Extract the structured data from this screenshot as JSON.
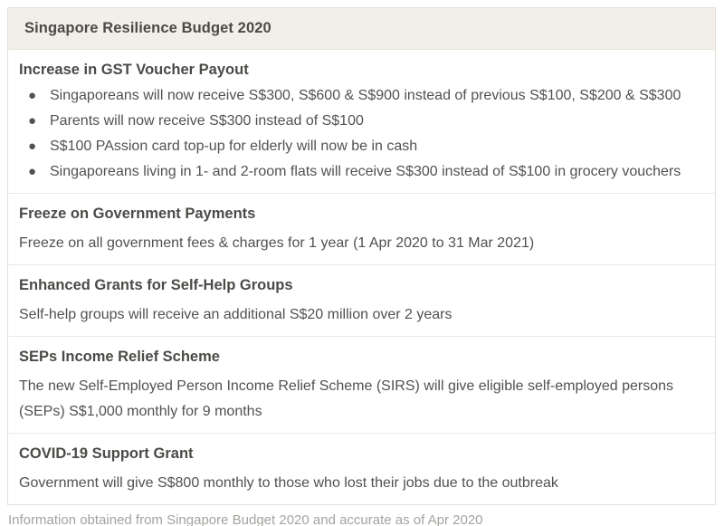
{
  "header": {
    "title": "Singapore Resilience Budget 2020"
  },
  "sections": [
    {
      "heading": "Increase in GST Voucher Payout",
      "bullets": [
        "Singaporeans will now receive S$300, S$600 & S$900 instead of previous S$100, S$200 & S$300",
        "Parents will now receive S$300 instead of S$100",
        "S$100 PAssion card top-up for elderly will now be in cash",
        "Singaporeans living in 1- and 2-room flats will receive S$300 instead of S$100 in grocery vouchers"
      ]
    },
    {
      "heading": "Freeze on Government Payments",
      "body": "Freeze on all government fees & charges for 1 year (1 Apr 2020 to 31 Mar 2021)"
    },
    {
      "heading": "Enhanced Grants for Self-Help Groups",
      "body": "Self-help groups will receive an additional S$20 million over 2 years"
    },
    {
      "heading": "SEPs Income Relief Scheme",
      "body": "The new Self-Employed Person Income Relief Scheme (SIRS) will give eligible self-employed persons (SEPs) S$1,000 monthly for 9 months"
    },
    {
      "heading": "COVID-19 Support Grant",
      "body": "Government will give S$800 monthly to those who lost their jobs due to the outbreak"
    }
  ],
  "footer": {
    "caption": "Information obtained from Singapore Budget 2020 and accurate as of Apr 2020"
  },
  "colors": {
    "header_bg": "#f2efe9",
    "box_border": "#e4e1d7",
    "divider": "#ece9e0",
    "heading_text": "#4a4a47",
    "body_text": "#515150",
    "caption_text": "#a3a39e"
  }
}
